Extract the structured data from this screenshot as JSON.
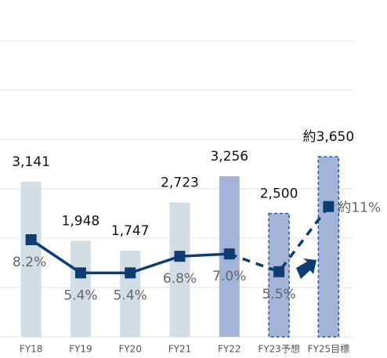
{
  "chart_data": {
    "type": "bar-line",
    "categories": [
      "FY18",
      "FY19",
      "FY20",
      "FY21",
      "FY22",
      "FY23予想",
      "FY25目標"
    ],
    "series": [
      {
        "type": "bar",
        "colors": [
          "#d3dde4",
          "#d3dde4",
          "#d3dde4",
          "#d3dde4",
          "#a3b4d8",
          "#a3b4d8",
          "#a3b4d8"
        ],
        "values": [
          3141,
          1948,
          1747,
          2723,
          3256,
          2500,
          3650
        ],
        "value_labels": [
          "3,141",
          "1,948",
          "1,747",
          "2,723",
          "3,256",
          "2,500",
          "約3,650"
        ]
      },
      {
        "type": "line",
        "axis": "y2",
        "color": "#0d3d73",
        "values": [
          8.2,
          5.4,
          5.4,
          6.8,
          7.0,
          5.5,
          11
        ],
        "value_labels": [
          "8.2%",
          "5.4%",
          "5.4%",
          "6.8%",
          "7.0%",
          "5.5%",
          "約11%"
        ]
      }
    ],
    "ylim": [
      0,
      6000
    ],
    "yticks": [
      0,
      1000,
      2000,
      3000,
      4000,
      5000,
      6000
    ],
    "y2lim": [
      0,
      25
    ],
    "grid": true
  }
}
